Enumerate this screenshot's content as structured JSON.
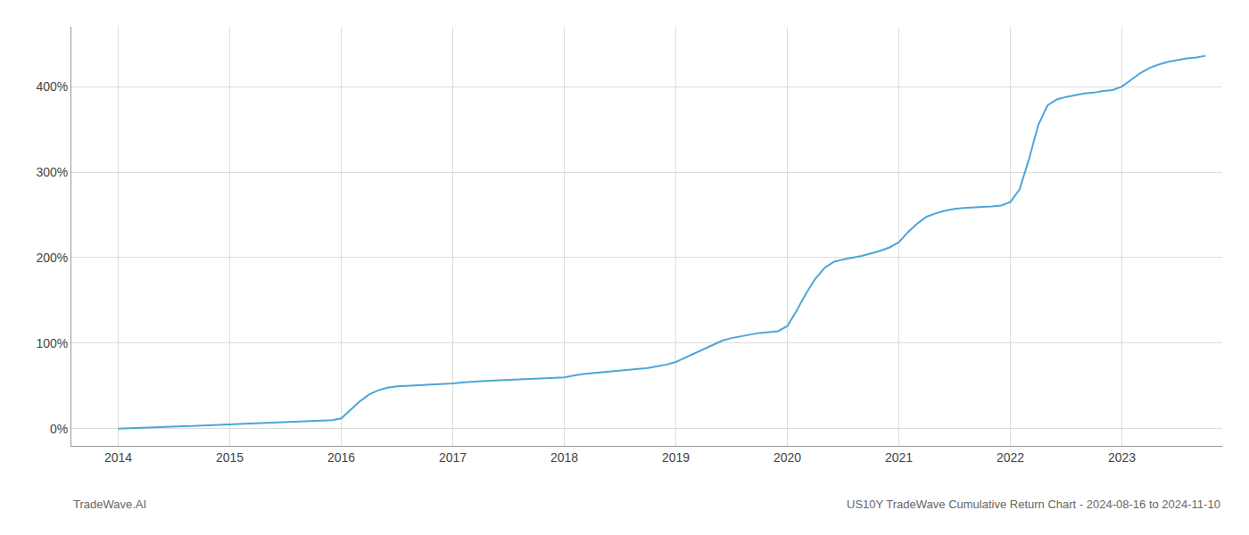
{
  "chart_data": {
    "type": "line",
    "title": "US10Y TradeWave Cumulative Return Chart - 2024-08-16 to 2024-11-10",
    "annotations": [
      "TradeWave.AI"
    ],
    "x": [
      2014.0,
      2014.083,
      2014.167,
      2014.25,
      2014.333,
      2014.417,
      2014.5,
      2014.583,
      2014.667,
      2014.75,
      2014.833,
      2014.917,
      2015.0,
      2015.083,
      2015.167,
      2015.25,
      2015.333,
      2015.417,
      2015.5,
      2015.583,
      2015.667,
      2015.75,
      2015.833,
      2015.917,
      2016.0,
      2016.083,
      2016.167,
      2016.25,
      2016.333,
      2016.417,
      2016.5,
      2016.583,
      2016.667,
      2016.75,
      2016.833,
      2016.917,
      2017.0,
      2017.083,
      2017.167,
      2017.25,
      2017.333,
      2017.417,
      2017.5,
      2017.583,
      2017.667,
      2017.75,
      2017.833,
      2017.917,
      2018.0,
      2018.083,
      2018.167,
      2018.25,
      2018.333,
      2018.417,
      2018.5,
      2018.583,
      2018.667,
      2018.75,
      2018.833,
      2018.917,
      2019.0,
      2019.083,
      2019.167,
      2019.25,
      2019.333,
      2019.417,
      2019.5,
      2019.583,
      2019.667,
      2019.75,
      2019.833,
      2019.917,
      2020.0,
      2020.083,
      2020.167,
      2020.25,
      2020.333,
      2020.417,
      2020.5,
      2020.583,
      2020.667,
      2020.75,
      2020.833,
      2020.917,
      2021.0,
      2021.083,
      2021.167,
      2021.25,
      2021.333,
      2021.417,
      2021.5,
      2021.583,
      2021.667,
      2021.75,
      2021.833,
      2021.917,
      2022.0,
      2022.083,
      2022.167,
      2022.25,
      2022.333,
      2022.417,
      2022.5,
      2022.583,
      2022.667,
      2022.75,
      2022.833,
      2022.917,
      2023.0,
      2023.083,
      2023.167,
      2023.25,
      2023.333,
      2023.417,
      2023.5,
      2023.583,
      2023.667,
      2023.75
    ],
    "values": [
      0,
      0.5,
      1,
      1.5,
      2,
      2.5,
      2.8,
      3.0,
      3.2,
      3.5,
      3.8,
      4.2,
      5,
      5.5,
      6,
      6.5,
      7,
      7.5,
      8,
      8.5,
      8.8,
      9,
      9.5,
      10,
      12,
      22,
      32,
      40,
      45,
      48,
      49.5,
      50,
      50.5,
      51,
      51.5,
      52,
      53,
      54,
      55,
      55.5,
      56,
      56.5,
      57,
      57.5,
      58,
      58.5,
      59,
      59.5,
      60,
      62,
      64,
      65,
      66,
      67,
      68,
      69,
      70,
      71,
      73,
      75,
      78,
      83,
      88,
      93,
      98,
      103,
      106,
      108,
      110,
      112,
      113,
      114,
      120,
      138,
      158,
      175,
      188,
      195,
      198,
      200,
      202,
      205,
      208,
      212,
      218,
      230,
      240,
      248,
      252,
      255,
      257,
      258,
      259,
      259.5,
      260,
      261,
      265,
      280,
      315,
      355,
      378,
      385,
      388,
      390,
      392,
      393,
      395,
      396,
      400,
      408,
      416,
      422,
      426,
      429,
      431,
      433,
      434,
      436
    ],
    "color": "#4da6d8",
    "xlim": [
      2013.58,
      2023.9
    ],
    "xticks": [
      2014,
      2015,
      2016,
      2017,
      2018,
      2019,
      2020,
      2021,
      2022,
      2023
    ],
    "ylim": [
      -20,
      470
    ],
    "yticks": [
      {
        "value": 0,
        "label": "0%"
      },
      {
        "value": 100,
        "label": "100%"
      },
      {
        "value": 200,
        "label": "200%"
      },
      {
        "value": 300,
        "label": "300%"
      },
      {
        "value": 400,
        "label": "400%"
      }
    ],
    "grid": true
  }
}
